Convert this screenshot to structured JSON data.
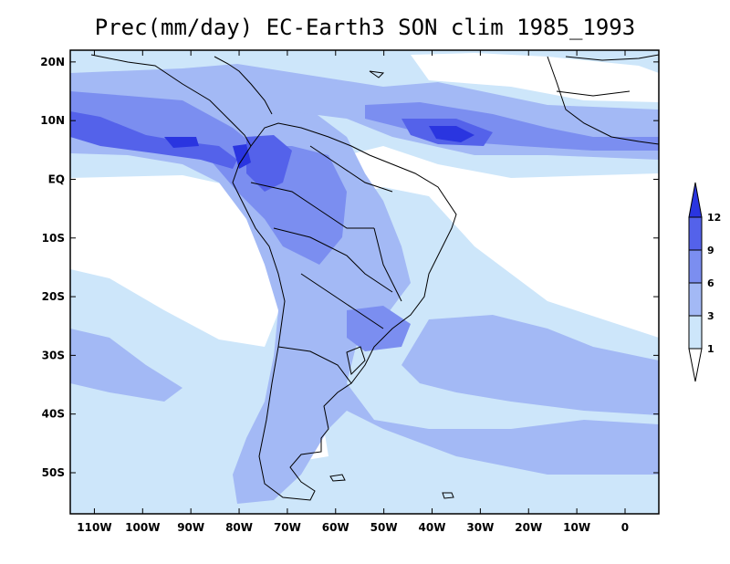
{
  "title": "Prec(mm/day) EC-Earth3 SON clim 1985_1993",
  "map": {
    "lon_range": [
      -115,
      7
    ],
    "lat_range": [
      -57,
      22
    ],
    "lat_ticks": [
      {
        "value": 20,
        "label": "20N"
      },
      {
        "value": 10,
        "label": "10N"
      },
      {
        "value": 0,
        "label": "EQ"
      },
      {
        "value": -10,
        "label": "10S"
      },
      {
        "value": -20,
        "label": "20S"
      },
      {
        "value": -30,
        "label": "30S"
      },
      {
        "value": -40,
        "label": "40S"
      },
      {
        "value": -50,
        "label": "50S"
      }
    ],
    "lon_ticks": [
      {
        "value": -110,
        "label": "110W"
      },
      {
        "value": -100,
        "label": "100W"
      },
      {
        "value": -90,
        "label": "90W"
      },
      {
        "value": -80,
        "label": "80W"
      },
      {
        "value": -70,
        "label": "70W"
      },
      {
        "value": -60,
        "label": "60W"
      },
      {
        "value": -50,
        "label": "50W"
      },
      {
        "value": -40,
        "label": "40W"
      },
      {
        "value": -30,
        "label": "30W"
      },
      {
        "value": -20,
        "label": "20W"
      },
      {
        "value": -10,
        "label": "10W"
      },
      {
        "value": 0,
        "label": "0"
      }
    ]
  },
  "colorbar": {
    "levels": [
      "1",
      "3",
      "6",
      "9",
      "12"
    ],
    "colors": {
      "below_1": "#ffffff",
      "1_3": "#cde6fa",
      "3_6": "#a3b9f5",
      "6_9": "#7b8ef0",
      "9_12": "#5462ea",
      "above_12": "#2a35e0"
    }
  },
  "colors": {
    "land_line": "#000000",
    "frame": "#000000"
  }
}
